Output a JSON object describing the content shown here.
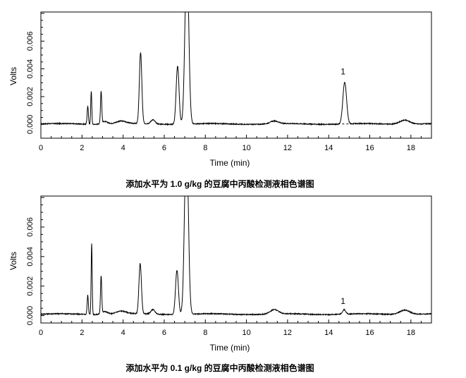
{
  "chart_data": [
    {
      "type": "line",
      "xlabel": "Time (min)",
      "ylabel": "Volts",
      "caption": "添加水平为 1.0 g/kg 的豆腐中丙酸检测液相色谱图",
      "xlim": [
        0,
        19
      ],
      "ylim": [
        -0.001,
        0.0081
      ],
      "x_ticks": [
        0,
        2,
        4,
        6,
        8,
        10,
        12,
        14,
        16,
        18
      ],
      "x_tick_labels": [
        "0",
        "2",
        "4",
        "6",
        "8",
        "10",
        "12",
        "14",
        "16",
        "18"
      ],
      "y_ticks": [
        0,
        0.002,
        0.004,
        0.006
      ],
      "y_tick_labels": [
        "0.000",
        "0.002",
        "0.004",
        "0.006"
      ],
      "baseline": 3e-05,
      "peaks": [
        {
          "x": 2.28,
          "height": 0.0013,
          "width": 0.03
        },
        {
          "x": 2.45,
          "height": 0.0024,
          "width": 0.025
        },
        {
          "x": 2.93,
          "height": 0.0023,
          "width": 0.03
        },
        {
          "x": 3.1,
          "height": 0.0002,
          "width": 0.15
        },
        {
          "x": 3.9,
          "height": 0.0002,
          "width": 0.25
        },
        {
          "x": 4.85,
          "height": 0.0051,
          "width": 0.06
        },
        {
          "x": 5.45,
          "height": 0.0003,
          "width": 0.1
        },
        {
          "x": 6.65,
          "height": 0.0042,
          "width": 0.07
        },
        {
          "x": 7.1,
          "height": 0.0125,
          "width": 0.09
        },
        {
          "x": 11.35,
          "height": 0.0002,
          "width": 0.2
        },
        {
          "x": 14.78,
          "height": 0.003,
          "width": 0.09
        },
        {
          "x": 17.7,
          "height": 0.0003,
          "width": 0.25
        }
      ],
      "annotations": [
        {
          "text": "1",
          "x": 14.7,
          "y": 0.0036
        }
      ]
    },
    {
      "type": "line",
      "xlabel": "Time (min)",
      "ylabel": "Volts",
      "caption": "添加水平为 0.1 g/kg 的豆腐中丙酸检测液相色谱图",
      "xlim": [
        0,
        19
      ],
      "ylim": [
        -0.0005,
        0.0081
      ],
      "x_ticks": [
        0,
        2,
        4,
        6,
        8,
        10,
        12,
        14,
        16,
        18
      ],
      "x_tick_labels": [
        "0",
        "2",
        "4",
        "6",
        "8",
        "10",
        "12",
        "14",
        "16",
        "18"
      ],
      "y_ticks": [
        0,
        0.002,
        0.004,
        0.006
      ],
      "y_tick_labels": [
        "0.000",
        "0.002",
        "0.004",
        "0.006"
      ],
      "baseline": 0.0001,
      "peaks": [
        {
          "x": 2.28,
          "height": 0.0013,
          "width": 0.03
        },
        {
          "x": 2.47,
          "height": 0.0048,
          "width": 0.025
        },
        {
          "x": 2.93,
          "height": 0.0025,
          "width": 0.03
        },
        {
          "x": 3.1,
          "height": 0.0002,
          "width": 0.15
        },
        {
          "x": 3.9,
          "height": 0.0002,
          "width": 0.25
        },
        {
          "x": 4.83,
          "height": 0.0034,
          "width": 0.06
        },
        {
          "x": 5.45,
          "height": 0.0003,
          "width": 0.1
        },
        {
          "x": 6.62,
          "height": 0.003,
          "width": 0.07
        },
        {
          "x": 7.08,
          "height": 0.0125,
          "width": 0.09
        },
        {
          "x": 11.35,
          "height": 0.0003,
          "width": 0.2
        },
        {
          "x": 14.75,
          "height": 0.0003,
          "width": 0.08
        },
        {
          "x": 17.7,
          "height": 0.0003,
          "width": 0.25
        }
      ],
      "annotations": [
        {
          "text": "1",
          "x": 14.7,
          "y": 0.0008
        }
      ]
    }
  ]
}
